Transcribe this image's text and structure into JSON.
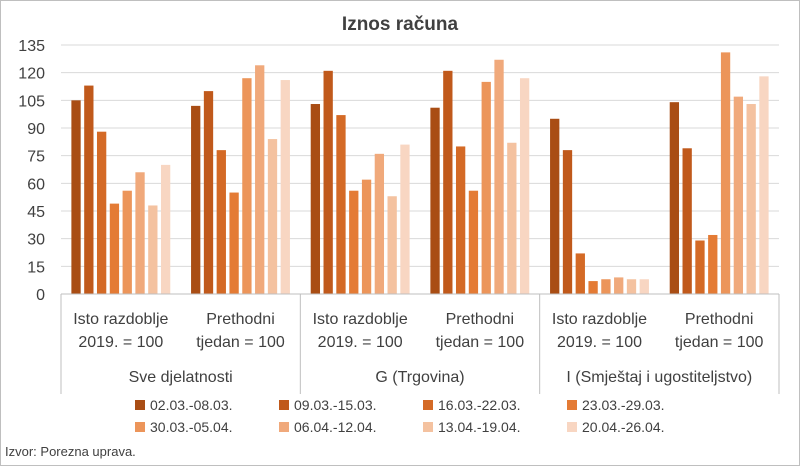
{
  "chart_data": {
    "type": "bar",
    "title": "Iznos računa",
    "xlabel": "",
    "ylabel": "",
    "ylim": [
      0,
      135
    ],
    "yticks": [
      0,
      15,
      30,
      45,
      60,
      75,
      90,
      105,
      120,
      135
    ],
    "grid": true,
    "legend_position": "bottom",
    "groups": [
      {
        "label": "Sve djelatnosti",
        "categories": [
          "Isto razdoblje 2019. = 100",
          "Prethodni tjedan = 100"
        ]
      },
      {
        "label": "G (Trgovina)",
        "categories": [
          "Isto razdoblje 2019. = 100",
          "Prethodni tjedan = 100"
        ]
      },
      {
        "label": "I (Smještaj i ugostiteljstvo)",
        "categories": [
          "Isto razdoblje 2019. = 100",
          "Prethodni tjedan = 100"
        ]
      }
    ],
    "category_lines": [
      [
        "Isto razdoblje",
        "2019. = 100"
      ],
      [
        "Prethodni",
        "tjedan = 100"
      ]
    ],
    "series": [
      {
        "name": "02.03.-08.03.",
        "color": "#a94d14",
        "values": [
          105,
          102,
          103,
          101,
          95,
          104
        ]
      },
      {
        "name": "09.03.-15.03.",
        "color": "#c0591b",
        "values": [
          113,
          110,
          121,
          121,
          78,
          79
        ]
      },
      {
        "name": "16.03.-22.03.",
        "color": "#d46a26",
        "values": [
          88,
          78,
          97,
          80,
          22,
          29
        ]
      },
      {
        "name": "23.03.-29.03.",
        "color": "#e47b35",
        "values": [
          49,
          55,
          56,
          56,
          7,
          32
        ]
      },
      {
        "name": "30.03.-05.04.",
        "color": "#ec955a",
        "values": [
          56,
          117,
          62,
          115,
          8,
          131
        ]
      },
      {
        "name": "06.04.-12.04.",
        "color": "#f0a97b",
        "values": [
          66,
          124,
          76,
          127,
          9,
          107
        ]
      },
      {
        "name": "13.04.-19.04.",
        "color": "#f4c2a0",
        "values": [
          48,
          84,
          53,
          82,
          8,
          103
        ]
      },
      {
        "name": "20.04.-26.04.",
        "color": "#f8d6c2",
        "values": [
          70,
          116,
          81,
          117,
          8,
          118
        ]
      }
    ]
  },
  "source": "Izvor: Porezna uprava."
}
